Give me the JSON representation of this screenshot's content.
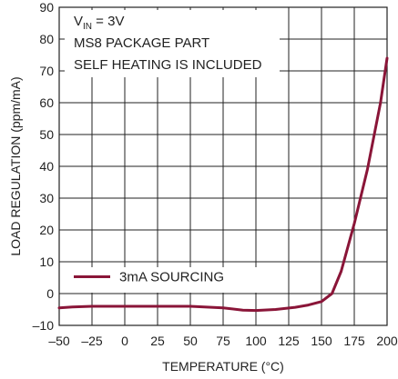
{
  "chart_data": {
    "type": "line",
    "xlabel": "TEMPERATURE (°C)",
    "ylabel": "LOAD REGULATION (ppm/mA)",
    "xlim": [
      -50,
      200
    ],
    "ylim": [
      -10,
      90
    ],
    "xticks": [
      -50,
      -25,
      0,
      25,
      50,
      75,
      100,
      125,
      150,
      175,
      200
    ],
    "yticks": [
      -10,
      0,
      10,
      20,
      30,
      40,
      50,
      60,
      70,
      80,
      90
    ],
    "xtick_labels": [
      "–50",
      "–25",
      "0",
      "25",
      "50",
      "75",
      "100",
      "125",
      "150",
      "175",
      "200"
    ],
    "ytick_labels": [
      "–10",
      "0",
      "10",
      "20",
      "30",
      "40",
      "50",
      "60",
      "70",
      "80",
      "90"
    ],
    "grid": true,
    "annotations": {
      "vin_prefix": "V",
      "vin_subscript": "IN",
      "vin_suffix": " = 3V",
      "line2": "MS8 PACKAGE PART",
      "line3": "SELF HEATING IS INCLUDED"
    },
    "legend_position": "bottom-left",
    "series": [
      {
        "name": "3mA SOURCING",
        "color": "#8a1538",
        "x": [
          -50,
          -40,
          -25,
          0,
          25,
          50,
          75,
          90,
          100,
          115,
          130,
          140,
          150,
          158,
          165,
          175,
          185,
          195,
          200
        ],
        "y": [
          -4.5,
          -4.2,
          -4,
          -4,
          -4,
          -4,
          -4.5,
          -5.2,
          -5.3,
          -5,
          -4.3,
          -3.6,
          -2.5,
          0,
          7,
          22,
          39,
          60,
          74
        ]
      }
    ]
  }
}
